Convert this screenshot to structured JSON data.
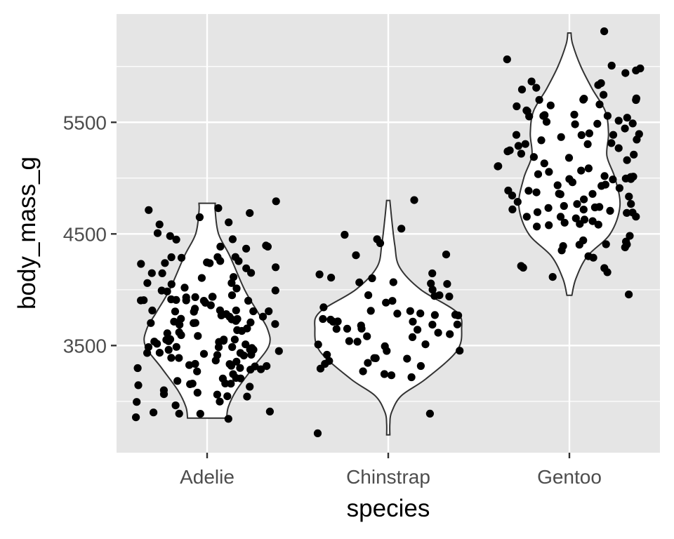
{
  "chart_data": {
    "type": "violin",
    "overlay": "jitter-points",
    "xlabel": "species",
    "ylabel": "body_mass_g",
    "categories": [
      "Adelie",
      "Chinstrap",
      "Gentoo"
    ],
    "y_ticks": [
      3500,
      4500,
      5500
    ],
    "y_tick_labels": [
      "3500",
      "4500",
      "5500"
    ],
    "ylim": [
      2540,
      6470
    ],
    "grid": true,
    "colors": {
      "panel_background": "#e5e5e5",
      "grid": "#ffffff",
      "violin_fill": "#ffffff",
      "violin_outline": "#333333",
      "points": "#000000",
      "tick_text": "#4d4d4d"
    },
    "violin_profiles": [
      {
        "category": "Adelie",
        "min": 2850,
        "max": 4775,
        "profile": [
          [
            2850,
            0.24
          ],
          [
            2950,
            0.26
          ],
          [
            3100,
            0.36
          ],
          [
            3300,
            0.56
          ],
          [
            3500,
            0.76
          ],
          [
            3650,
            0.74
          ],
          [
            3800,
            0.62
          ],
          [
            4000,
            0.46
          ],
          [
            4300,
            0.28
          ],
          [
            4500,
            0.14
          ],
          [
            4700,
            0.1
          ],
          [
            4775,
            0.1
          ]
        ]
      },
      {
        "category": "Chinstrap",
        "min": 2700,
        "max": 4800,
        "profile": [
          [
            2700,
            0.02
          ],
          [
            2800,
            0.02
          ],
          [
            2900,
            0.04
          ],
          [
            3050,
            0.16
          ],
          [
            3200,
            0.46
          ],
          [
            3450,
            0.84
          ],
          [
            3650,
            0.9
          ],
          [
            3800,
            0.84
          ],
          [
            4000,
            0.4
          ],
          [
            4200,
            0.14
          ],
          [
            4400,
            0.08
          ],
          [
            4650,
            0.04
          ],
          [
            4800,
            0.02
          ]
        ]
      },
      {
        "category": "Gentoo",
        "min": 3950,
        "max": 6300,
        "profile": [
          [
            3950,
            0.03
          ],
          [
            4100,
            0.08
          ],
          [
            4300,
            0.22
          ],
          [
            4500,
            0.5
          ],
          [
            4750,
            0.62
          ],
          [
            5000,
            0.56
          ],
          [
            5200,
            0.46
          ],
          [
            5400,
            0.48
          ],
          [
            5600,
            0.44
          ],
          [
            5800,
            0.28
          ],
          [
            6000,
            0.14
          ],
          [
            6200,
            0.04
          ],
          [
            6300,
            0.02
          ]
        ]
      }
    ],
    "points": [
      {
        "category": "Adelie",
        "values": [
          3750,
          3800,
          3250,
          3450,
          3650,
          3625,
          4675,
          3475,
          4250,
          3300,
          3700,
          3200,
          3800,
          4400,
          3700,
          3450,
          4500,
          3325,
          4200,
          3400,
          3600,
          3800,
          3950,
          3800,
          3800,
          3550,
          3200,
          3150,
          3950,
          3250,
          3900,
          3300,
          3900,
          3325,
          4150,
          3950,
          3550,
          3300,
          4650,
          3150,
          3900,
          3100,
          4400,
          3000,
          4600,
          3425,
          2975,
          3450,
          4150,
          3500,
          4300,
          3450,
          4050,
          2900,
          3700,
          3550,
          3800,
          2850,
          3750,
          3150,
          4400,
          3600,
          4050,
          2850,
          3950,
          3350,
          4100,
          3050,
          4450,
          3600,
          3900,
          3550,
          4150,
          3700,
          4250,
          3700,
          3900,
          3550,
          4000,
          3200,
          4700,
          3800,
          4200,
          3350,
          3550,
          3800,
          3500,
          3950,
          3600,
          3550,
          4300,
          3400,
          4450,
          3300,
          4300,
          3700,
          4350,
          2900,
          4100,
          3725,
          4725,
          3075,
          4250,
          2925,
          3550,
          3750,
          3900,
          3175,
          4775,
          3825,
          4600,
          3200,
          4275,
          3900,
          4075,
          2900,
          3775,
          3350,
          3325,
          3150,
          3500,
          3450,
          3875,
          3050,
          4000,
          3275,
          4300,
          3050,
          4000,
          3325,
          3500,
          3500,
          4475,
          3425,
          3900,
          3175,
          3975,
          3400,
          4250,
          3400,
          3475,
          3050,
          3725,
          3000,
          3650,
          4250,
          3475,
          3450,
          3750,
          3700,
          4000
        ]
      },
      {
        "category": "Chinstrap",
        "values": [
          3500,
          3900,
          3650,
          3525,
          3725,
          3950,
          3250,
          3750,
          4150,
          3700,
          3800,
          3775,
          3700,
          4050,
          3575,
          4050,
          3300,
          3700,
          3450,
          4400,
          3600,
          3400,
          2900,
          3800,
          3300,
          4150,
          3400,
          3800,
          3700,
          4550,
          3200,
          4300,
          3350,
          4100,
          3600,
          3900,
          3850,
          4800,
          2700,
          4500,
          3950,
          3650,
          3550,
          3500,
          3675,
          4450,
          3400,
          4300,
          3250,
          3675,
          3325,
          3950,
          3600,
          4050,
          3350,
          3450,
          3250,
          4050,
          3800,
          3525,
          3950,
          3650,
          3650,
          4000,
          3400,
          3775,
          4100,
          3775
        ]
      },
      {
        "category": "Gentoo",
        "values": [
          4500,
          5700,
          4450,
          5700,
          5400,
          4550,
          4800,
          5200,
          4400,
          5150,
          4650,
          5550,
          4650,
          5850,
          4200,
          5850,
          4150,
          6300,
          4800,
          5350,
          5700,
          5000,
          4400,
          5050,
          5000,
          5100,
          4100,
          5650,
          4600,
          5550,
          5250,
          4700,
          5050,
          6050,
          5150,
          5400,
          4950,
          5250,
          4350,
          5350,
          3950,
          5700,
          4300,
          4750,
          5550,
          4900,
          4200,
          5400,
          5100,
          5300,
          4850,
          5300,
          4400,
          5000,
          4900,
          5050,
          4300,
          5000,
          4450,
          5550,
          4200,
          5300,
          4400,
          5650,
          4700,
          5700,
          4650,
          5800,
          4700,
          5550,
          4750,
          5000,
          5100,
          5200,
          4700,
          5800,
          4600,
          6000,
          4750,
          5950,
          4625,
          5450,
          4725,
          5350,
          4750,
          5600,
          4600,
          5300,
          4875,
          5550,
          4950,
          5400,
          4750,
          5650,
          4850,
          5200,
          4925,
          4875,
          4625,
          5250,
          4850,
          5600,
          4975,
          5500,
          4725,
          5500,
          4700,
          5500,
          4575,
          5500,
          5000,
          5950,
          4650,
          5500,
          4375,
          5850,
          4875,
          6000,
          4925,
          4850,
          5750,
          5200,
          5400
        ]
      }
    ]
  }
}
